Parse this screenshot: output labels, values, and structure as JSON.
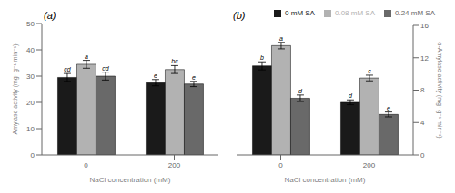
{
  "chart_data": [
    {
      "type": "bar",
      "title": "(a)",
      "xlabel": "NaCl  concentration (mM)",
      "ylabel": "Amylase activity (mg· g⁻¹ min⁻¹)",
      "categories": [
        "0",
        "200"
      ],
      "series": [
        {
          "name": "0 mM SA",
          "color": "#1a1a1a",
          "values": [
            29.5,
            27.5
          ],
          "errors": [
            1.5,
            1.2
          ],
          "letters": [
            "cd",
            "e"
          ]
        },
        {
          "name": "0.08 mM SA",
          "color": "#b2b2b2",
          "values": [
            34.5,
            32.5
          ],
          "errors": [
            1.5,
            1.5
          ],
          "letters": [
            "a",
            "bc"
          ]
        },
        {
          "name": "0.24 mM SA",
          "color": "#696969",
          "values": [
            30.0,
            27.0
          ],
          "errors": [
            1.5,
            1.0
          ],
          "letters": [
            "cd",
            "e"
          ]
        }
      ],
      "ylim": [
        0,
        50
      ],
      "yticks": [
        0,
        10,
        20,
        30,
        40,
        50
      ]
    },
    {
      "type": "bar",
      "title": "(b)",
      "xlabel": "NaCl  concentration (mM)",
      "ylabel": "α-Amylase activity (mg· g⁻¹ min⁻¹)",
      "categories": [
        "0",
        "200"
      ],
      "series": [
        {
          "name": "0 mM SA",
          "color": "#1a1a1a",
          "values": [
            11.0,
            6.5
          ],
          "errors": [
            0.5,
            0.3
          ],
          "letters": [
            "b",
            "d"
          ]
        },
        {
          "name": "0.08 mM SA",
          "color": "#b2b2b2",
          "values": [
            13.5,
            9.5
          ],
          "errors": [
            0.4,
            0.35
          ],
          "letters": [
            "a",
            "c"
          ]
        },
        {
          "name": "0.24 mM SA",
          "color": "#696969",
          "values": [
            7.0,
            5.0
          ],
          "errors": [
            0.4,
            0.3
          ],
          "letters": [
            "d",
            "e"
          ]
        }
      ],
      "ylim": [
        0,
        16
      ],
      "yticks": [
        0,
        4,
        8,
        12,
        16
      ],
      "legend": "upper right"
    }
  ]
}
